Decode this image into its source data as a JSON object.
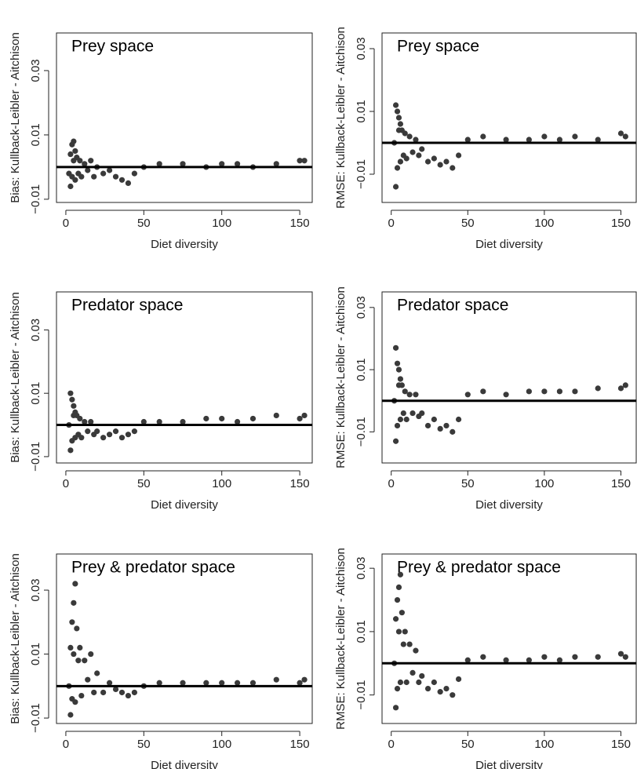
{
  "chart_data": [
    {
      "type": "scatter",
      "title": "Prey space",
      "xlabel": "Diet diversity",
      "ylabel": "Bias: Kullback-Leibler - Aitchison",
      "color": "#3a3a3a",
      "hline": 0,
      "xlim": [
        -6,
        158
      ],
      "ylim": [
        -0.011,
        0.0417
      ],
      "xticks": [
        0,
        50,
        100,
        150
      ],
      "yticks": [
        {
          "value": -0.01,
          "label": "−0.01"
        },
        0.01,
        0.03
      ],
      "x": [
        2,
        3,
        3,
        4,
        4,
        5,
        5,
        6,
        6,
        7,
        8,
        9,
        10,
        12,
        14,
        16,
        18,
        20,
        24,
        28,
        32,
        36,
        40,
        44,
        50,
        60,
        75,
        90,
        100,
        110,
        120,
        135,
        150,
        153
      ],
      "values": [
        -0.002,
        0.004,
        -0.006,
        0.007,
        -0.003,
        0.008,
        0.002,
        0.005,
        -0.004,
        0.003,
        -0.002,
        0.002,
        -0.003,
        0.001,
        -0.001,
        0.002,
        -0.003,
        0.0,
        -0.002,
        -0.001,
        -0.003,
        -0.004,
        -0.005,
        -0.002,
        0.0,
        0.001,
        0.001,
        0.0,
        0.001,
        0.001,
        0.0,
        0.001,
        0.002,
        0.002
      ]
    },
    {
      "type": "scatter",
      "title": "Prey space",
      "xlabel": "Diet diversity",
      "ylabel": "RMSE: Kullback-Leibler - Aitchison",
      "color": "#3a3a3a",
      "hline": 0,
      "xlim": [
        -6,
        160
      ],
      "ylim": [
        -0.019,
        0.035
      ],
      "xticks": [
        0,
        50,
        100,
        150
      ],
      "yticks": [
        {
          "value": -0.01,
          "label": "−0.01"
        },
        0.01,
        0.03
      ],
      "x": [
        2,
        3,
        3,
        4,
        4,
        5,
        5,
        6,
        6,
        7,
        8,
        9,
        10,
        12,
        14,
        16,
        18,
        20,
        24,
        28,
        32,
        36,
        40,
        44,
        50,
        60,
        75,
        90,
        100,
        110,
        120,
        135,
        150,
        153
      ],
      "values": [
        0.0,
        0.012,
        -0.014,
        0.01,
        -0.008,
        0.008,
        0.004,
        0.006,
        -0.006,
        0.004,
        -0.004,
        0.003,
        -0.005,
        0.002,
        -0.003,
        0.001,
        -0.004,
        -0.002,
        -0.006,
        -0.005,
        -0.007,
        -0.006,
        -0.008,
        -0.004,
        0.001,
        0.002,
        0.001,
        0.001,
        0.002,
        0.001,
        0.002,
        0.001,
        0.003,
        0.002
      ]
    },
    {
      "type": "scatter",
      "title": "Predator space",
      "xlabel": "Diet diversity",
      "ylabel": "Bias: Kullback-Leibler - Aitchison",
      "color": "#3a3a3a",
      "hline": 0,
      "xlim": [
        -6,
        158
      ],
      "ylim": [
        -0.012,
        0.042
      ],
      "xticks": [
        0,
        50,
        100,
        150
      ],
      "yticks": [
        {
          "value": -0.01,
          "label": "−0.01"
        },
        0.01,
        0.03
      ],
      "x": [
        2,
        3,
        3,
        4,
        4,
        5,
        5,
        6,
        6,
        7,
        8,
        9,
        10,
        12,
        14,
        16,
        18,
        20,
        24,
        28,
        32,
        36,
        40,
        44,
        50,
        60,
        75,
        90,
        100,
        110,
        120,
        135,
        150,
        153
      ],
      "values": [
        0.0,
        0.01,
        -0.008,
        0.008,
        -0.005,
        0.006,
        0.003,
        0.004,
        -0.004,
        0.003,
        -0.003,
        0.002,
        -0.004,
        0.001,
        -0.002,
        0.001,
        -0.003,
        -0.002,
        -0.004,
        -0.003,
        -0.002,
        -0.004,
        -0.003,
        -0.002,
        0.001,
        0.001,
        0.001,
        0.002,
        0.002,
        0.001,
        0.002,
        0.003,
        0.002,
        0.003
      ]
    },
    {
      "type": "scatter",
      "title": "Predator space",
      "xlabel": "Diet diversity",
      "ylabel": "RMSE: Kullback-Leibler - Aitchison",
      "color": "#3a3a3a",
      "hline": 0,
      "xlim": [
        -6,
        160
      ],
      "ylim": [
        -0.02,
        0.035
      ],
      "xticks": [
        0,
        50,
        100,
        150
      ],
      "yticks": [
        {
          "value": -0.01,
          "label": "−0.01"
        },
        0.01,
        0.03
      ],
      "x": [
        2,
        3,
        3,
        4,
        4,
        5,
        5,
        6,
        6,
        7,
        8,
        9,
        10,
        12,
        14,
        16,
        18,
        20,
        24,
        28,
        32,
        36,
        40,
        44,
        50,
        60,
        75,
        90,
        100,
        110,
        120,
        135,
        150,
        153
      ],
      "values": [
        0.0,
        0.017,
        -0.013,
        0.012,
        -0.008,
        0.01,
        0.005,
        0.007,
        -0.006,
        0.005,
        -0.004,
        0.003,
        -0.006,
        0.002,
        -0.004,
        0.002,
        -0.005,
        -0.004,
        -0.008,
        -0.006,
        -0.009,
        -0.008,
        -0.01,
        -0.006,
        0.002,
        0.003,
        0.002,
        0.003,
        0.003,
        0.003,
        0.003,
        0.004,
        0.004,
        0.005
      ]
    },
    {
      "type": "scatter",
      "title": "Prey & predator space",
      "xlabel": "Diet diversity",
      "ylabel": "Bias: Kullback-Leibler - Aitchison",
      "color": "#3a3a3a",
      "hline": 0,
      "xlim": [
        -6,
        158
      ],
      "ylim": [
        -0.0117,
        0.0413
      ],
      "xticks": [
        0,
        50,
        100,
        150
      ],
      "yticks": [
        {
          "value": -0.01,
          "label": "−0.01"
        },
        0.01,
        0.03
      ],
      "x": [
        2,
        3,
        3,
        4,
        4,
        5,
        5,
        6,
        6,
        7,
        8,
        9,
        10,
        12,
        14,
        16,
        18,
        20,
        24,
        28,
        32,
        36,
        40,
        44,
        50,
        60,
        75,
        90,
        100,
        110,
        120,
        135,
        150,
        153
      ],
      "values": [
        0.0,
        0.012,
        -0.009,
        0.02,
        -0.004,
        0.026,
        0.01,
        0.032,
        -0.005,
        0.018,
        0.008,
        0.012,
        -0.003,
        0.008,
        0.002,
        0.01,
        -0.002,
        0.004,
        -0.002,
        0.001,
        -0.001,
        -0.002,
        -0.003,
        -0.002,
        0.0,
        0.001,
        0.001,
        0.001,
        0.001,
        0.001,
        0.001,
        0.002,
        0.001,
        0.002
      ]
    },
    {
      "type": "scatter",
      "title": "Prey & predator space",
      "xlabel": "Diet diversity",
      "ylabel": "RMSE: Kullback-Leibler - Aitchison",
      "color": "#3a3a3a",
      "hline": 0,
      "xlim": [
        -6,
        160
      ],
      "ylim": [
        -0.019,
        0.0345
      ],
      "xticks": [
        0,
        50,
        100,
        150
      ],
      "yticks": [
        {
          "value": -0.01,
          "label": "−0.01"
        },
        0.01,
        0.03
      ],
      "x": [
        2,
        3,
        3,
        4,
        4,
        5,
        5,
        6,
        6,
        7,
        8,
        9,
        10,
        12,
        14,
        16,
        18,
        20,
        24,
        28,
        32,
        36,
        40,
        44,
        50,
        60,
        75,
        90,
        100,
        110,
        120,
        135,
        150,
        153
      ],
      "values": [
        0.0,
        0.014,
        -0.014,
        0.02,
        -0.008,
        0.024,
        0.01,
        0.028,
        -0.006,
        0.016,
        0.006,
        0.01,
        -0.006,
        0.006,
        -0.003,
        0.004,
        -0.006,
        -0.004,
        -0.008,
        -0.006,
        -0.009,
        -0.008,
        -0.01,
        -0.005,
        0.001,
        0.002,
        0.001,
        0.001,
        0.002,
        0.001,
        0.002,
        0.002,
        0.003,
        0.002
      ]
    }
  ]
}
